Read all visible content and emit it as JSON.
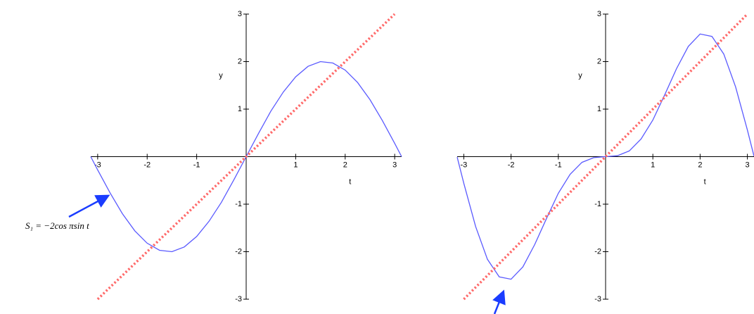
{
  "chart_data": [
    {
      "type": "line",
      "xlabel": "t",
      "ylabel": "y",
      "x": [
        -3.14,
        -3,
        -2.75,
        -2.5,
        -2.25,
        -2,
        -1.75,
        -1.5,
        -1.25,
        -1,
        -0.75,
        -0.5,
        -0.25,
        0,
        0.25,
        0.5,
        0.75,
        1,
        1.25,
        1.5,
        1.75,
        2,
        2.25,
        2.5,
        2.75,
        3,
        3.14
      ],
      "series": [
        {
          "color": "#5a5aff",
          "style": "solid",
          "values": [
            0,
            -0.28,
            -0.76,
            -1.2,
            -1.56,
            -1.82,
            -1.97,
            -2,
            -1.9,
            -1.68,
            -1.36,
            -0.96,
            -0.49,
            0,
            0.49,
            0.96,
            1.36,
            1.68,
            1.9,
            2,
            1.97,
            1.82,
            1.56,
            1.2,
            0.76,
            0.28,
            0
          ]
        },
        {
          "color": "#ff6a6a",
          "style": "dotted",
          "values": [
            null,
            -3,
            -2.75,
            -2.5,
            -2.25,
            -2,
            -1.75,
            -1.5,
            -1.25,
            -1,
            -0.75,
            -0.5,
            -0.25,
            0,
            0.25,
            0.5,
            0.75,
            1,
            1.25,
            1.5,
            1.75,
            2,
            2.25,
            2.5,
            2.75,
            3,
            null
          ]
        }
      ],
      "xlim": [
        -3.14,
        3.14
      ],
      "ylim": [
        -3,
        3
      ],
      "xticks": [
        -3,
        -2,
        -1,
        1,
        2,
        3
      ],
      "yticks": [
        -3,
        -2,
        -1,
        1,
        2,
        3
      ],
      "annotation": "S₁ = −2cos πsin t"
    },
    {
      "type": "line",
      "xlabel": "t",
      "ylabel": "y",
      "x": [
        -3.14,
        -3,
        -2.75,
        -2.5,
        -2.25,
        -2,
        -1.75,
        -1.5,
        -1.25,
        -1,
        -0.75,
        -0.5,
        -0.25,
        0,
        0.25,
        0.5,
        0.75,
        1,
        1.25,
        1.5,
        1.75,
        2,
        2.25,
        2.5,
        2.75,
        3,
        3.14
      ],
      "series": [
        {
          "color": "#5a5aff",
          "style": "solid",
          "values": [
            -0.01,
            -0.56,
            -1.47,
            -2.16,
            -2.53,
            -2.58,
            -2.32,
            -1.85,
            -1.3,
            -0.77,
            -0.37,
            -0.12,
            -0.02,
            0,
            0.02,
            0.12,
            0.37,
            0.77,
            1.3,
            1.85,
            2.32,
            2.58,
            2.53,
            2.16,
            1.47,
            0.56,
            0.01
          ]
        },
        {
          "color": "#ff6a6a",
          "style": "dotted",
          "values": [
            null,
            -3,
            -2.75,
            -2.5,
            -2.25,
            -2,
            -1.75,
            -1.5,
            -1.25,
            -1,
            -0.75,
            -0.5,
            -0.25,
            0,
            0.25,
            0.5,
            0.75,
            1,
            1.25,
            1.5,
            1.75,
            2,
            2.25,
            2.5,
            2.75,
            3,
            null
          ]
        }
      ],
      "xlim": [
        -3.14,
        3.14
      ],
      "ylim": [
        -3,
        3
      ],
      "xticks": [
        -3,
        -2,
        -1,
        1,
        2,
        3
      ],
      "yticks": [
        -3,
        -2,
        -1,
        1,
        2,
        3
      ]
    }
  ]
}
